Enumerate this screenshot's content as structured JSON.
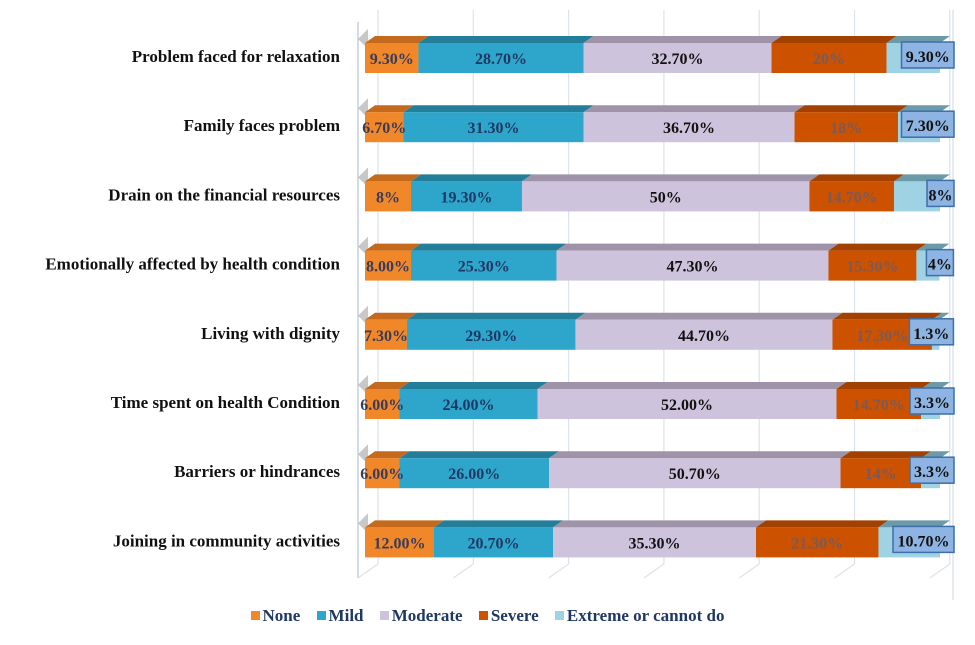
{
  "chart_data": {
    "type": "bar",
    "orientation": "horizontal",
    "stacked": true,
    "style": "3d",
    "title": "",
    "xlabel": "",
    "ylabel": "",
    "xlim": [
      0,
      100
    ],
    "grid": true,
    "legend_position": "bottom",
    "categories": [
      "Problem faced for relaxation",
      "Family faces problem",
      "Drain on the financial resources",
      "Emotionally affected by health condition",
      "Living with dignity",
      "Time spent on health Condition",
      "Barriers or hindrances",
      "Joining in community activities"
    ],
    "series": [
      {
        "name": "None",
        "color": "#f0882a",
        "top_color": "#c56a1c",
        "label_color": "#3a3a5a",
        "values": [
          9.3,
          6.7,
          8,
          8.0,
          7.3,
          6.0,
          6.0,
          12.0
        ],
        "labels": [
          "9.30%",
          "6.70%",
          "8%",
          "8.00%",
          "7.30%",
          "6.00%",
          "6.00%",
          "12.00%"
        ]
      },
      {
        "name": "Mild",
        "color": "#2ea6cc",
        "top_color": "#237f99",
        "label_color": "#1f3864",
        "values": [
          28.7,
          31.3,
          19.3,
          25.3,
          29.3,
          24.0,
          26.0,
          20.7
        ],
        "labels": [
          "28.70%",
          "31.30%",
          "19.30%",
          "25.30%",
          "29.30%",
          "24.00%",
          "26.00%",
          "20.70%"
        ]
      },
      {
        "name": "Moderate",
        "color": "#cdc3dc",
        "top_color": "#9e93a8",
        "label_color": "#111111",
        "values": [
          32.7,
          36.7,
          50,
          47.3,
          44.7,
          52.0,
          50.7,
          35.3
        ],
        "labels": [
          "32.70%",
          "36.70%",
          "50%",
          "47.30%",
          "44.70%",
          "52.00%",
          "50.70%",
          "35.30%"
        ]
      },
      {
        "name": "Severe",
        "color": "#cc5200",
        "top_color": "#a34100",
        "label_color": "#7a5a5a",
        "values": [
          20,
          18,
          14.7,
          15.3,
          17.3,
          14.7,
          14,
          21.3
        ],
        "labels": [
          "20%",
          "18%",
          "14.70%",
          "15.30%",
          "17.30%",
          "14.70%",
          "14%",
          "21.30%"
        ]
      },
      {
        "name": "Extreme or cannot do",
        "color": "#9fd3e3",
        "top_color": "#6c9aa8",
        "label_color": "#111111",
        "label_box_color": "#8db4e2",
        "label_box_border": "#3d6fa8",
        "values": [
          9.3,
          7.3,
          8,
          4,
          1.3,
          3.3,
          3.3,
          10.7
        ],
        "labels": [
          "9.30%",
          "7.30%",
          "8%",
          "4%",
          "1.3%",
          "3.3%",
          "3.3%",
          "10.70%"
        ]
      }
    ]
  },
  "legend": {
    "items": [
      {
        "label": "None",
        "color": "#f0882a"
      },
      {
        "label": "Mild",
        "color": "#2ea6cc"
      },
      {
        "label": "Moderate",
        "color": "#cdc3dc"
      },
      {
        "label": "Severe",
        "color": "#cc5200"
      },
      {
        "label": "Extreme or cannot do",
        "color": "#9fd3e3"
      }
    ]
  }
}
